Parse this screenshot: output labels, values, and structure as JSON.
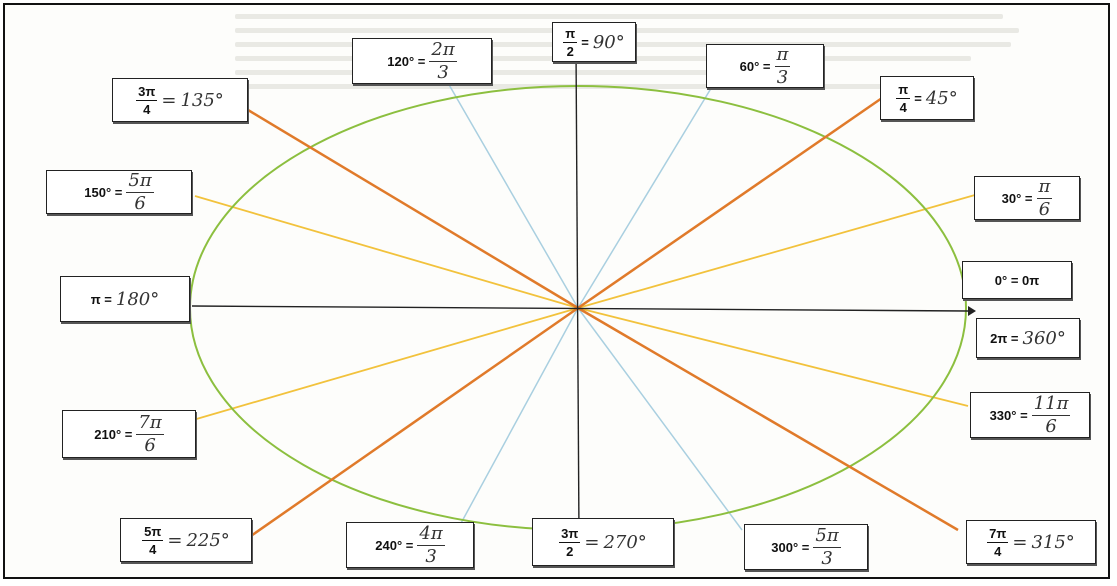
{
  "colors": {
    "circle": "#8cbf3f",
    "line_45": "#e07a2a",
    "line_30": "#f2c23c",
    "line_60": "#a9cfe0",
    "axis": "#222222",
    "label_border": "#222222"
  },
  "labels": {
    "l90": {
      "lhs_num": "π",
      "lhs_den": "2",
      "eq": "=",
      "rhs": "90°"
    },
    "l120": {
      "lhs": "120° =",
      "rhs_num": "2π",
      "rhs_den": "3"
    },
    "l60": {
      "lhs": "60° =",
      "rhs_num": "π",
      "rhs_den": "3"
    },
    "l135": {
      "lhs_num": "3π",
      "lhs_den": "4",
      "eq": "=",
      "rhs": "135°"
    },
    "l45": {
      "lhs_num": "π",
      "lhs_den": "4",
      "eq": "=",
      "rhs": "45°"
    },
    "l150": {
      "lhs": "150° =",
      "rhs_num": "5π",
      "rhs_den": "6"
    },
    "l30": {
      "lhs": "30° =",
      "rhs_num": "π",
      "rhs_den": "6"
    },
    "l0": {
      "text": "0° = 0π"
    },
    "l180": {
      "lhs": "π =",
      "rhs": "180°"
    },
    "l360": {
      "lhs": "2π =",
      "rhs": "360°"
    },
    "l210": {
      "lhs": "210° =",
      "rhs_num": "7π",
      "rhs_den": "6"
    },
    "l330": {
      "lhs": "330° =",
      "rhs_num": "11π",
      "rhs_den": "6"
    },
    "l225": {
      "lhs_num": "5π",
      "lhs_den": "4",
      "eq": "=",
      "rhs": "225°"
    },
    "l240": {
      "lhs": "240° =",
      "rhs_num": "4π",
      "rhs_den": "3"
    },
    "l270": {
      "lhs_num": "3π",
      "lhs_den": "2",
      "eq": "=",
      "rhs": "270°"
    },
    "l300": {
      "lhs": "300° =",
      "rhs_num": "5π",
      "rhs_den": "3"
    },
    "l315": {
      "lhs_num": "7π",
      "lhs_den": "4",
      "eq": "=",
      "rhs": "315°"
    }
  }
}
